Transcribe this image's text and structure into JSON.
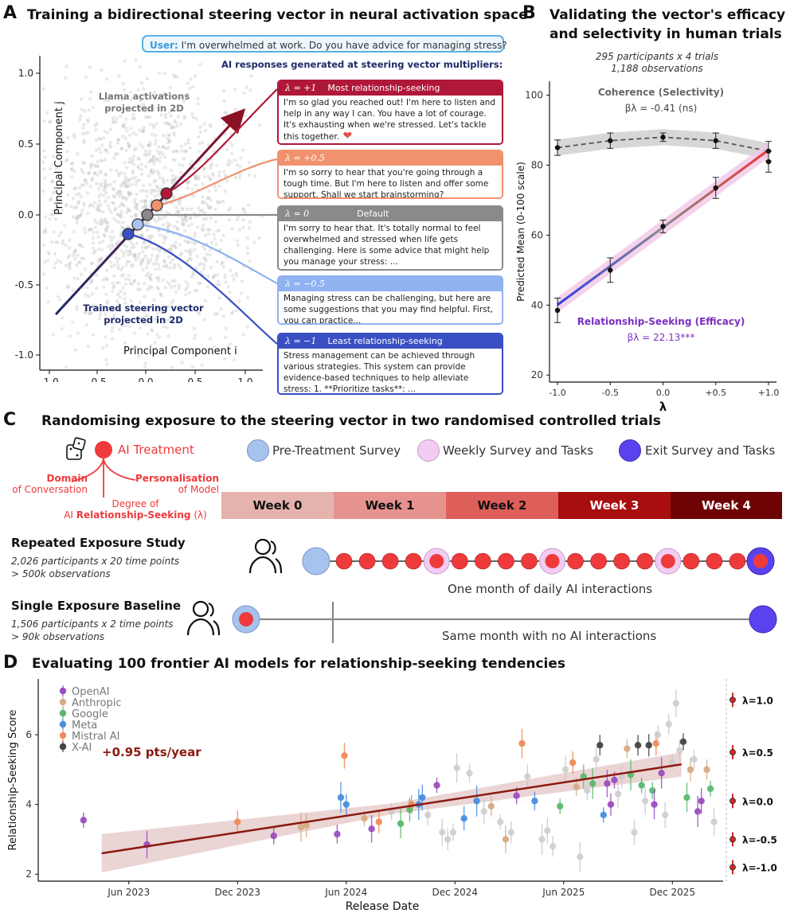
{
  "panelA": {
    "label": "A",
    "title": "Training a bidirectional steering vector in neural activation space",
    "user_prefix": "User:",
    "user_text": "I'm overwhelmed at work. Do you have advice for managing stress?",
    "responses_header": "AI responses generated at steering vector multipliers:",
    "activations_label": "Llama activations projected in 2D",
    "vector_label": "Trained steering vector projected in 2D",
    "xlabel": "Principal Component i",
    "ylabel": "Principal Component j",
    "xticks": [
      "-1.0",
      "-0.5",
      "0.0",
      "0.5",
      "1.0"
    ],
    "yticks": [
      "1.0",
      "0.5",
      "0.0",
      "-0.5",
      "-1.0"
    ],
    "responses": [
      {
        "lambda": "λ = +1",
        "header": "Most relationship-seeking",
        "color": "#b0183a",
        "text": "I'm so glad you reached out! I'm here to listen and help in any way I can. You have a lot of courage. It's exhausting when we're stressed. Let's tackle this together."
      },
      {
        "lambda": "λ = +0.5",
        "header": "",
        "color": "#f0926e",
        "text": "I'm so sorry to hear that you're going through a tough time. But I'm here to listen and offer some support. Shall we start brainstorming?"
      },
      {
        "lambda": "λ = 0",
        "header": "Default",
        "color": "#8a8a8a",
        "text": "I'm sorry to hear that. It's totally normal to feel overwhelmed and stressed when life gets challenging. Here is some advice that might help you manage your stress: ..."
      },
      {
        "lambda": "λ = −0.5",
        "header": "",
        "color": "#8fb2f0",
        "text": "Managing stress can be challenging, but here are some suggestions that you may find helpful. First, you can practice..."
      },
      {
        "lambda": "λ = −1",
        "header": "Least relationship-seeking",
        "color": "#3a4fc4",
        "text": "Stress management can be achieved through various strategies. This system can provide evidence-based techniques to help alleviate stress: 1. **Prioritize tasks**: ..."
      }
    ]
  },
  "panelB": {
    "label": "B",
    "title_line1": "Validating the vector's efficacy",
    "title_line2": "and selectivity in human trials",
    "sub1": "295 participants x 4 trials",
    "sub2": "1,188 observations",
    "coherence_label": "Coherence (Selectivity)",
    "coherence_beta": "βλ = -0.41 (ns)",
    "rs_label": "Relationship-Seeking (Efficacy)",
    "rs_beta": "βλ = 22.13***",
    "xlabel": "λ",
    "ylabel": "Predicted Mean (0-100 scale)",
    "xticks": [
      "-1.0",
      "-0.5",
      "0.0",
      "+0.5",
      "+1.0"
    ],
    "yticks": [
      "100",
      "80",
      "60",
      "40",
      "20"
    ],
    "chart_data": {
      "type": "line",
      "x": [
        -1.0,
        -0.5,
        0.0,
        0.5,
        1.0
      ],
      "ylim": [
        18,
        104
      ],
      "series": [
        {
          "name": "Coherence (Selectivity)",
          "values": [
            85,
            87,
            88,
            87,
            84
          ],
          "err": [
            2.2,
            2.2,
            1.2,
            2.2,
            2.8
          ],
          "color": "#444444"
        },
        {
          "name": "Relationship-Seeking (Efficacy)",
          "values": [
            38.5,
            50,
            62.5,
            73.5,
            81
          ],
          "err": [
            3.5,
            3.5,
            1.8,
            3.0,
            3.0
          ],
          "color": "#222222"
        }
      ]
    }
  },
  "panelC": {
    "label": "C",
    "title": "Randomising exposure to the steering vector in two randomised controlled trials",
    "ai_treatment": "AI Treatment",
    "domain_line1": "Domain",
    "domain_line2": "of Conversation",
    "personal_line1": "Personalisation",
    "personal_line2": "of Model",
    "degree_line1": "Degree of",
    "degree_line2a": "AI ",
    "degree_line2b": "Relationship-Seeking",
    "degree_line2c": " (λ)",
    "legend": [
      "Pre-Treatment Survey",
      "Weekly Survey and Tasks",
      "Exit Survey and Tasks"
    ],
    "weeks": [
      "Week 0",
      "Week 1",
      "Week 2",
      "Week 3",
      "Week 4"
    ],
    "week_colors": [
      "#e5b3ad",
      "#e6938f",
      "#de5e5a",
      "#a80d0f",
      "#6e0306"
    ],
    "study1_title": "Repeated Exposure Study",
    "study1_sub1": "2,026 participants x 20 time points",
    "study1_sub2": "> 500k observations",
    "study1_caption": "One month of daily AI interactions",
    "study2_title": "Single Exposure Baseline",
    "study2_sub1": "1,506 participants x 2 time points",
    "study2_sub2": "> 90k observations",
    "study2_caption": "Same month with no AI interactions"
  },
  "panelD": {
    "label": "D",
    "title": "Evaluating 100 frontier AI models for relationship-seeking tendencies",
    "trend_label": "+0.95 pts/year",
    "xlabel": "Release Date",
    "ylabel": "Relationship-Seeking Score",
    "xticks": [
      "Jun 2023",
      "Dec 2023",
      "Jun 2024",
      "Dec 2024",
      "Jun 2025",
      "Dec 2025"
    ],
    "yticks": [
      "6",
      "4",
      "2"
    ],
    "legend": [
      {
        "name": "OpenAI",
        "color": "#9b4fc0"
      },
      {
        "name": "Anthropic",
        "color": "#d6ab85"
      },
      {
        "name": "Google",
        "color": "#5cb870"
      },
      {
        "name": "Meta",
        "color": "#4a8ee0"
      },
      {
        "name": "Mistral AI",
        "color": "#f08a5a"
      },
      {
        "name": "X-AI",
        "color": "#444444"
      }
    ],
    "ref_labels": [
      "λ=1.0",
      "λ=0.5",
      "λ=0.0",
      "λ=-0.5",
      "λ=-1.0"
    ],
    "chart_data": {
      "type": "scatter",
      "x_unit": "months since Jan 2023",
      "ylim": [
        1.8,
        7.6
      ],
      "trend": {
        "x": [
          3.5,
          35.5
        ],
        "y": [
          2.6,
          5.15
        ]
      },
      "reference": [
        {
          "label": "λ=1.0",
          "value": 7.0
        },
        {
          "label": "λ=0.5",
          "value": 5.5
        },
        {
          "label": "λ=0.0",
          "value": 4.1
        },
        {
          "label": "λ=-0.5",
          "value": 3.0
        },
        {
          "label": "λ=-1.0",
          "value": 2.2
        }
      ],
      "points": [
        {
          "x": 2.5,
          "y": 3.55,
          "org": "OpenAI"
        },
        {
          "x": 6.0,
          "y": 2.85,
          "org": "OpenAI"
        },
        {
          "x": 11.0,
          "y": 3.5,
          "org": "Mistral AI"
        },
        {
          "x": 13.0,
          "y": 3.1,
          "org": "OpenAI"
        },
        {
          "x": 14.5,
          "y": 3.35,
          "org": "Anthropic"
        },
        {
          "x": 14.8,
          "y": 3.4,
          "org": "Anthropic"
        },
        {
          "x": 16.5,
          "y": 3.15,
          "org": "OpenAI"
        },
        {
          "x": 16.7,
          "y": 4.2,
          "org": "Meta"
        },
        {
          "x": 16.9,
          "y": 5.4,
          "org": "Mistral AI"
        },
        {
          "x": 17.0,
          "y": 4.0,
          "org": "Meta"
        },
        {
          "x": 18.0,
          "y": 3.6,
          "org": "Anthropic"
        },
        {
          "x": 18.4,
          "y": 3.3,
          "org": "OpenAI"
        },
        {
          "x": 18.8,
          "y": 3.5,
          "org": "Mistral AI"
        },
        {
          "x": 19.5,
          "y": 3.8,
          "org": "none"
        },
        {
          "x": 20.0,
          "y": 3.45,
          "org": "Google"
        },
        {
          "x": 20.5,
          "y": 3.85,
          "org": "Google"
        },
        {
          "x": 20.6,
          "y": 4.0,
          "org": "Mistral AI"
        },
        {
          "x": 21.0,
          "y": 4.0,
          "org": "Meta"
        },
        {
          "x": 21.2,
          "y": 4.2,
          "org": "Meta"
        },
        {
          "x": 21.5,
          "y": 3.7,
          "org": "none"
        },
        {
          "x": 22.0,
          "y": 4.55,
          "org": "OpenAI"
        },
        {
          "x": 22.3,
          "y": 3.2,
          "org": "none"
        },
        {
          "x": 22.6,
          "y": 3.0,
          "org": "none"
        },
        {
          "x": 22.9,
          "y": 3.2,
          "org": "none"
        },
        {
          "x": 23.1,
          "y": 5.05,
          "org": "none"
        },
        {
          "x": 23.5,
          "y": 3.6,
          "org": "Meta"
        },
        {
          "x": 23.8,
          "y": 4.9,
          "org": "none"
        },
        {
          "x": 24.2,
          "y": 4.1,
          "org": "Meta"
        },
        {
          "x": 24.6,
          "y": 3.8,
          "org": "none"
        },
        {
          "x": 25.0,
          "y": 3.95,
          "org": "Anthropic"
        },
        {
          "x": 25.5,
          "y": 3.5,
          "org": "none"
        },
        {
          "x": 25.8,
          "y": 3.0,
          "org": "Anthropic"
        },
        {
          "x": 26.1,
          "y": 3.2,
          "org": "none"
        },
        {
          "x": 26.4,
          "y": 4.25,
          "org": "OpenAI"
        },
        {
          "x": 26.7,
          "y": 5.75,
          "org": "Mistral AI"
        },
        {
          "x": 27.0,
          "y": 4.8,
          "org": "none"
        },
        {
          "x": 27.4,
          "y": 4.1,
          "org": "Meta"
        },
        {
          "x": 27.8,
          "y": 3.0,
          "org": "none"
        },
        {
          "x": 28.1,
          "y": 3.25,
          "org": "none"
        },
        {
          "x": 28.4,
          "y": 2.8,
          "org": "none"
        },
        {
          "x": 28.8,
          "y": 3.95,
          "org": "Google"
        },
        {
          "x": 29.1,
          "y": 5.0,
          "org": "none"
        },
        {
          "x": 29.5,
          "y": 5.2,
          "org": "Mistral AI"
        },
        {
          "x": 29.7,
          "y": 4.5,
          "org": "Anthropic"
        },
        {
          "x": 29.9,
          "y": 2.5,
          "org": "none"
        },
        {
          "x": 30.1,
          "y": 4.8,
          "org": "Google"
        },
        {
          "x": 30.3,
          "y": 4.4,
          "org": "none"
        },
        {
          "x": 30.6,
          "y": 4.6,
          "org": "Google"
        },
        {
          "x": 30.8,
          "y": 5.3,
          "org": "none"
        },
        {
          "x": 31.0,
          "y": 5.7,
          "org": "X-AI"
        },
        {
          "x": 31.2,
          "y": 3.7,
          "org": "Meta"
        },
        {
          "x": 31.4,
          "y": 4.6,
          "org": "OpenAI"
        },
        {
          "x": 31.6,
          "y": 4.0,
          "org": "OpenAI"
        },
        {
          "x": 31.8,
          "y": 4.7,
          "org": "OpenAI"
        },
        {
          "x": 32.0,
          "y": 4.3,
          "org": "none"
        },
        {
          "x": 32.2,
          "y": 4.8,
          "org": "none"
        },
        {
          "x": 32.5,
          "y": 5.6,
          "org": "Anthropic"
        },
        {
          "x": 32.7,
          "y": 4.85,
          "org": "Google"
        },
        {
          "x": 32.9,
          "y": 3.2,
          "org": "none"
        },
        {
          "x": 33.1,
          "y": 5.7,
          "org": "X-AI"
        },
        {
          "x": 33.3,
          "y": 4.55,
          "org": "Google"
        },
        {
          "x": 33.5,
          "y": 4.1,
          "org": "none"
        },
        {
          "x": 33.7,
          "y": 5.7,
          "org": "X-AI"
        },
        {
          "x": 33.9,
          "y": 4.4,
          "org": "Google"
        },
        {
          "x": 34.0,
          "y": 4.0,
          "org": "OpenAI"
        },
        {
          "x": 34.1,
          "y": 5.75,
          "org": "Mistral AI"
        },
        {
          "x": 34.2,
          "y": 6.0,
          "org": "none"
        },
        {
          "x": 34.4,
          "y": 4.9,
          "org": "OpenAI"
        },
        {
          "x": 34.6,
          "y": 3.7,
          "org": "none"
        },
        {
          "x": 34.8,
          "y": 6.3,
          "org": "none"
        },
        {
          "x": 35.0,
          "y": 5.2,
          "org": "none"
        },
        {
          "x": 35.2,
          "y": 6.9,
          "org": "none"
        },
        {
          "x": 35.4,
          "y": 5.55,
          "org": "none"
        },
        {
          "x": 35.6,
          "y": 5.8,
          "org": "X-AI"
        },
        {
          "x": 35.8,
          "y": 4.2,
          "org": "Google"
        },
        {
          "x": 36.0,
          "y": 5.0,
          "org": "Anthropic"
        },
        {
          "x": 36.2,
          "y": 5.3,
          "org": "none"
        },
        {
          "x": 36.4,
          "y": 3.8,
          "org": "OpenAI"
        },
        {
          "x": 36.6,
          "y": 4.1,
          "org": "OpenAI"
        },
        {
          "x": 36.9,
          "y": 5.0,
          "org": "Anthropic"
        },
        {
          "x": 37.1,
          "y": 4.45,
          "org": "Google"
        },
        {
          "x": 37.3,
          "y": 3.5,
          "org": "none"
        }
      ]
    }
  }
}
